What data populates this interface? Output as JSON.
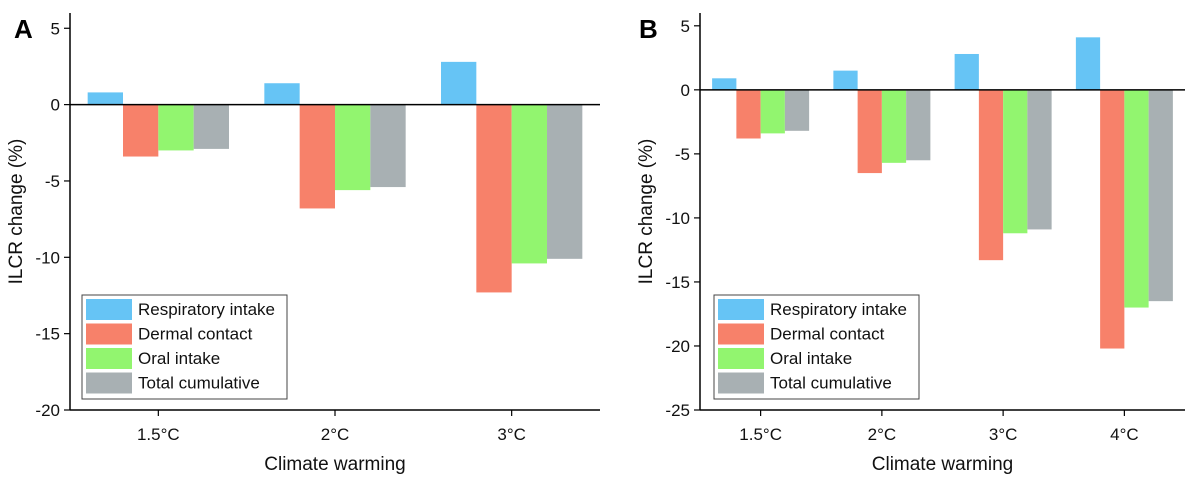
{
  "chart_data": [
    {
      "panel": "A",
      "type": "bar",
      "categories": [
        "1.5°C",
        "2°C",
        "3°C"
      ],
      "series": [
        {
          "name": "Respiratory intake",
          "color": "#66c4f5",
          "values": [
            0.8,
            1.4,
            2.8
          ]
        },
        {
          "name": "Dermal contact",
          "color": "#f7816a",
          "values": [
            -3.4,
            -6.8,
            -12.3
          ]
        },
        {
          "name": "Oral intake",
          "color": "#92f56f",
          "values": [
            -3.0,
            -5.6,
            -10.4
          ]
        },
        {
          "name": "Total cumulative",
          "color": "#a8b0b3",
          "values": [
            -2.9,
            -5.4,
            -10.1
          ]
        }
      ],
      "xlabel": "Climate warming",
      "ylabel": "ILCR change (%)",
      "ylim": [
        -20,
        6
      ],
      "yticks": [
        5,
        0,
        -5,
        -10,
        -15,
        -20
      ],
      "ytick_labels": [
        "5",
        "0",
        "-5",
        "-10",
        "-15",
        "-20"
      ],
      "legend": "bottom-left"
    },
    {
      "panel": "B",
      "type": "bar",
      "categories": [
        "1.5°C",
        "2°C",
        "3°C",
        "4°C"
      ],
      "series": [
        {
          "name": "Respiratory intake",
          "color": "#66c4f5",
          "values": [
            0.9,
            1.5,
            2.8,
            4.1
          ]
        },
        {
          "name": "Dermal contact",
          "color": "#f7816a",
          "values": [
            -3.8,
            -6.5,
            -13.3,
            -20.2
          ]
        },
        {
          "name": "Oral intake",
          "color": "#92f56f",
          "values": [
            -3.4,
            -5.7,
            -11.2,
            -17.0
          ]
        },
        {
          "name": "Total cumulative",
          "color": "#a8b0b3",
          "values": [
            -3.2,
            -5.5,
            -10.9,
            -16.5
          ]
        }
      ],
      "xlabel": "Climate warming",
      "ylabel": "ILCR change (%)",
      "ylim": [
        -25,
        6
      ],
      "yticks": [
        5,
        0,
        -5,
        -10,
        -15,
        -20,
        -25
      ],
      "ytick_labels": [
        "5",
        "0",
        "-5",
        "-10",
        "-15",
        "-20",
        "-25"
      ],
      "legend": "bottom-left"
    }
  ]
}
